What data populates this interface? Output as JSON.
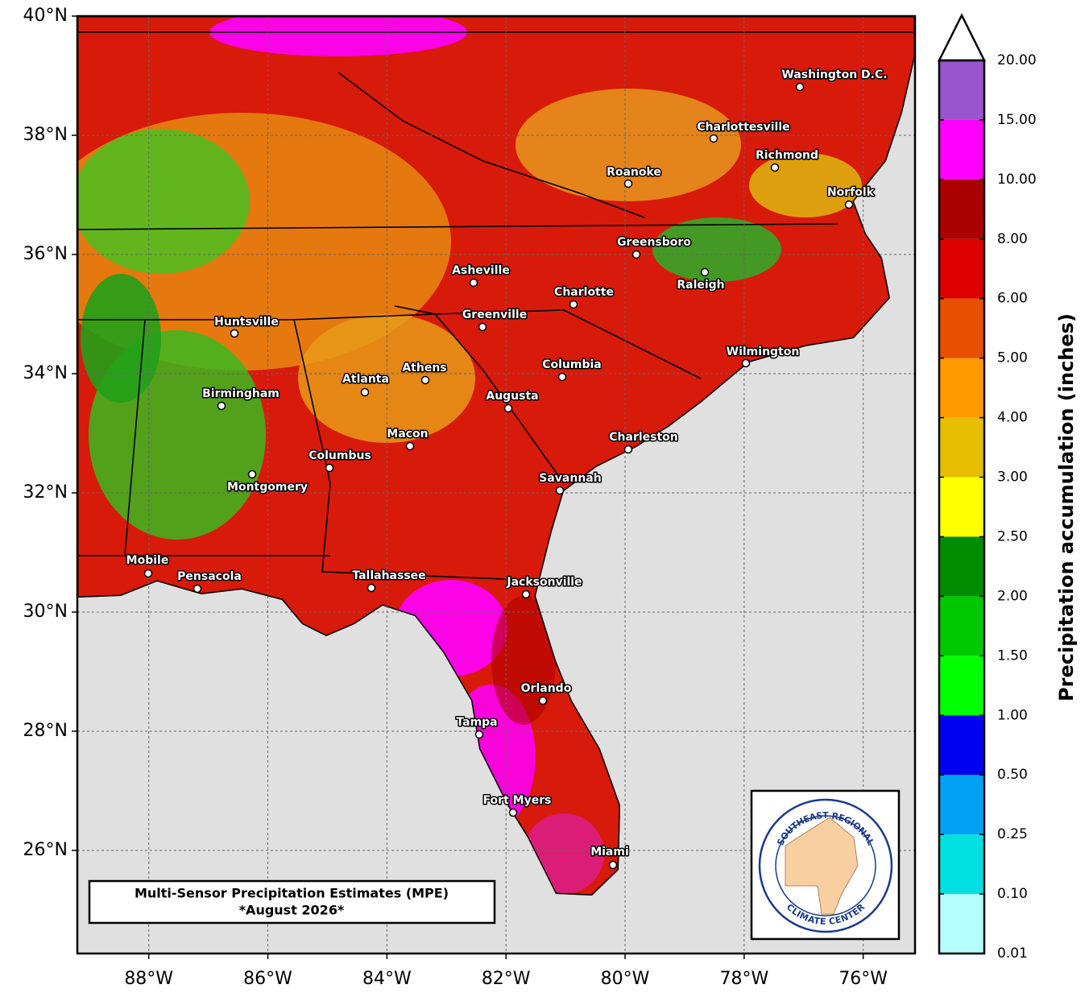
{
  "map": {
    "xlim": [
      -89.2,
      -75.13
    ],
    "ylim": [
      24.27,
      40
    ],
    "xticks": [
      {
        "value": -88,
        "label": "88°W"
      },
      {
        "value": -86,
        "label": "86°W"
      },
      {
        "value": -84,
        "label": "84°W"
      },
      {
        "value": -82,
        "label": "82°W"
      },
      {
        "value": -80,
        "label": "80°W"
      },
      {
        "value": -78,
        "label": "78°W"
      },
      {
        "value": -76,
        "label": "76°W"
      }
    ],
    "yticks": [
      {
        "value": 40,
        "label": "40°N"
      },
      {
        "value": 38,
        "label": "38°N"
      },
      {
        "value": 36,
        "label": "36°N"
      },
      {
        "value": 34,
        "label": "34°N"
      },
      {
        "value": 32,
        "label": "32°N"
      },
      {
        "value": 30,
        "label": "30°N"
      },
      {
        "value": 28,
        "label": "28°N"
      },
      {
        "value": 26,
        "label": "26°N"
      }
    ],
    "grid": true,
    "cities": [
      "Washington D.C.",
      "Charlottesville",
      "Richmond",
      "Roanoke",
      "Norfolk",
      "Greensboro",
      "Raleigh",
      "Asheville",
      "Charlotte",
      "Greenville",
      "Huntsville",
      "Wilmington",
      "Columbia",
      "Athens",
      "Atlanta",
      "Birmingham",
      "Augusta",
      "Macon",
      "Charleston",
      "Columbus",
      "Montgomery",
      "Savannah",
      "Mobile",
      "Pensacola",
      "Tallahassee",
      "Jacksonville",
      "Orlando",
      "Tampa",
      "Fort Myers",
      "Miami"
    ],
    "caption": [
      "Multi-Sensor Precipitation Estimates (MPE)",
      "*August 2026*"
    ],
    "logo": [
      "SOUTHEAST REGIONAL",
      "CLIMATE CENTER"
    ]
  },
  "colorbar": {
    "title": "Precipitation accumulation (inches)",
    "levels": [
      {
        "value": 0.01,
        "label": "0.01"
      },
      {
        "value": 0.1,
        "label": "0.10"
      },
      {
        "value": 0.25,
        "label": "0.25"
      },
      {
        "value": 0.5,
        "label": "0.50"
      },
      {
        "value": 1,
        "label": "1.00"
      },
      {
        "value": 1.5,
        "label": "1.50"
      },
      {
        "value": 2,
        "label": "2.00"
      },
      {
        "value": 2.5,
        "label": "2.50"
      },
      {
        "value": 3,
        "label": "3.00"
      },
      {
        "value": 4,
        "label": "4.00"
      },
      {
        "value": 5,
        "label": "5.00"
      },
      {
        "value": 6,
        "label": "6.00"
      },
      {
        "value": 8,
        "label": "8.00"
      },
      {
        "value": 10,
        "label": "10.00"
      },
      {
        "value": 15,
        "label": "15.00"
      },
      {
        "value": 20,
        "label": "20.00"
      }
    ],
    "colors": [
      "#b4ffff",
      "#00e0e0",
      "#00a0f5",
      "#0000f0",
      "#00ff00",
      "#00c800",
      "#008c00",
      "#ffff00",
      "#e6be00",
      "#ff9900",
      "#e65000",
      "#dc0000",
      "#aa0000",
      "#ff00ff",
      "#9955cc"
    ],
    "extend_color": "#ffffff"
  }
}
